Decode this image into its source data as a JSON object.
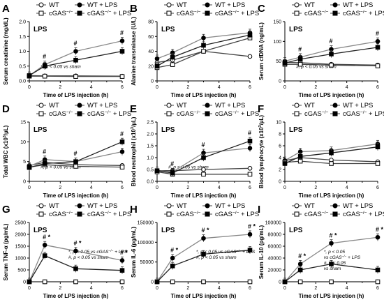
{
  "legend_labels": {
    "wt": "WT",
    "wt_lps": "WT + LPS",
    "cgas": "cGAS-/-",
    "cgas_lps": "cGAS-/- + LPS"
  },
  "colors": {
    "wt": "#666666",
    "wt_lps": "#000000",
    "cgas": "#666666",
    "cgas_lps": "#000000",
    "line_lps": "#888888",
    "line_sham": "#222222"
  },
  "chart_data": [
    {
      "panel": "A",
      "type": "line",
      "condition": "LPS",
      "ylabel": "Serum creatinine (mg/dL)",
      "xlabel": "Time of LPS injection (h)",
      "xlim": [
        0,
        6
      ],
      "xticks": [
        0,
        2,
        4,
        6
      ],
      "ylim": [
        0,
        2.0
      ],
      "yticks": [
        "0.0",
        "0.5",
        "1.0",
        "1.5",
        "2.0"
      ],
      "annotation": "#, p < 0.05 vs sham",
      "x": [
        0,
        1,
        3,
        6
      ],
      "series": [
        {
          "name": "WT",
          "values": [
            0.18,
            0.17,
            0.17,
            0.16
          ]
        },
        {
          "name": "WT + LPS",
          "values": [
            0.18,
            0.55,
            1.0,
            1.35
          ]
        },
        {
          "name": "cGAS-/-",
          "values": [
            0.16,
            0.16,
            0.15,
            0.15
          ]
        },
        {
          "name": "cGAS-/- + LPS",
          "values": [
            0.18,
            0.5,
            0.7,
            1.0
          ]
        }
      ]
    },
    {
      "panel": "B",
      "type": "line",
      "condition": "LPS",
      "ylabel": "Alanine transminase (U/L)",
      "xlabel": "Time of LPS injection (h)",
      "xlim": [
        0,
        6
      ],
      "xticks": [
        0,
        2,
        4,
        6
      ],
      "ylim": [
        0,
        80
      ],
      "yticks": [
        "0",
        "20",
        "40",
        "60",
        "80"
      ],
      "annotation": "",
      "x": [
        0,
        1,
        3,
        6
      ],
      "series": [
        {
          "name": "WT",
          "values": [
            25,
            28,
            40,
            33
          ]
        },
        {
          "name": "WT + LPS",
          "values": [
            30,
            38,
            58,
            65
          ]
        },
        {
          "name": "cGAS-/-",
          "values": [
            18,
            22,
            40,
            58
          ]
        },
        {
          "name": "cGAS-/- + LPS",
          "values": [
            20,
            32,
            48,
            62
          ]
        }
      ]
    },
    {
      "panel": "C",
      "type": "line",
      "condition": "LPS",
      "ylabel": "Serum cfDNA (ng/mL)",
      "xlabel": "Time of LPS injection (h)",
      "xlim": [
        0,
        6
      ],
      "xticks": [
        0,
        2,
        4,
        6
      ],
      "ylim": [
        0,
        150
      ],
      "yticks": [
        "0",
        "50",
        "100",
        "150"
      ],
      "annotation": "#, p < 0.05 vs sham",
      "x": [
        0,
        1,
        3,
        6
      ],
      "series": [
        {
          "name": "WT",
          "values": [
            47,
            46,
            42,
            40
          ]
        },
        {
          "name": "WT + LPS",
          "values": [
            50,
            60,
            80,
            100
          ]
        },
        {
          "name": "cGAS-/-",
          "values": [
            42,
            42,
            40,
            38
          ]
        },
        {
          "name": "cGAS-/- + LPS",
          "values": [
            45,
            55,
            68,
            85
          ]
        }
      ]
    },
    {
      "panel": "D",
      "type": "line",
      "condition": "LPS",
      "ylabel": "Total WBC (x10^3/µL)",
      "xlabel": "Time of LPS injection (h)",
      "xlim": [
        0,
        6
      ],
      "xticks": [
        0,
        2,
        4,
        6
      ],
      "ylim": [
        0,
        15
      ],
      "yticks": [
        "0",
        "5",
        "10",
        "15"
      ],
      "annotation": "#, p < 0.05 vs sham",
      "x": [
        0,
        1,
        3,
        6
      ],
      "series": [
        {
          "name": "WT",
          "values": [
            4.0,
            4.8,
            4.2,
            4.0
          ]
        },
        {
          "name": "WT + LPS",
          "values": [
            3.8,
            5.5,
            5.0,
            7.5
          ]
        },
        {
          "name": "cGAS-/-",
          "values": [
            3.6,
            4.2,
            3.8,
            3.6
          ]
        },
        {
          "name": "cGAS-/- + LPS",
          "values": [
            3.5,
            4.5,
            5.0,
            10.0
          ]
        }
      ]
    },
    {
      "panel": "E",
      "type": "line",
      "condition": "LPS",
      "ylabel": "Blood neutrophil (x10^3/µL)",
      "xlabel": "Time of LPS injection (h)",
      "xlim": [
        0,
        6
      ],
      "xticks": [
        0,
        2,
        4,
        6
      ],
      "ylim": [
        0.0,
        2.5
      ],
      "yticks": [
        "0.0",
        "0.5",
        "1.0",
        "1.5",
        "2.0",
        "2.5"
      ],
      "annotation": "#, p < 0.05 vs sham",
      "x": [
        0,
        1,
        3,
        6
      ],
      "series": [
        {
          "name": "WT",
          "values": [
            0.45,
            0.45,
            0.5,
            0.55
          ]
        },
        {
          "name": "WT + LPS",
          "values": [
            0.45,
            0.4,
            1.2,
            1.4
          ]
        },
        {
          "name": "cGAS-/-",
          "values": [
            0.4,
            0.3,
            0.3,
            0.3
          ]
        },
        {
          "name": "cGAS-/- + LPS",
          "values": [
            0.45,
            0.35,
            1.0,
            1.7
          ]
        }
      ]
    },
    {
      "panel": "F",
      "type": "line",
      "condition": "LPS",
      "ylabel": "Blood lymphocyte (x10^3/µL)",
      "xlabel": "Time of LPS injection (h)",
      "xlim": [
        0,
        6
      ],
      "xticks": [
        0,
        2,
        4,
        6
      ],
      "ylim": [
        0,
        10
      ],
      "yticks": [
        "0",
        "2",
        "4",
        "6",
        "8",
        "10"
      ],
      "annotation": "",
      "x": [
        0,
        1,
        3,
        6
      ],
      "series": [
        {
          "name": "WT",
          "values": [
            3.5,
            4.0,
            3.6,
            3.3
          ]
        },
        {
          "name": "WT + LPS",
          "values": [
            3.5,
            5.0,
            5.2,
            6.3
          ]
        },
        {
          "name": "cGAS-/-",
          "values": [
            3.2,
            3.4,
            3.0,
            3.0
          ]
        },
        {
          "name": "cGAS-/- + LPS",
          "values": [
            3.0,
            4.2,
            4.8,
            5.8
          ]
        }
      ]
    },
    {
      "panel": "G",
      "type": "line",
      "condition": "LPS",
      "ylabel": "Serum TNF-α (pg/mL)",
      "xlabel": "Time of LPS injection (h)",
      "xlim": [
        0,
        6
      ],
      "xticks": [
        0,
        2,
        4,
        6
      ],
      "ylim": [
        0,
        2500
      ],
      "yticks": [
        "0",
        "500",
        "1000",
        "1500",
        "2000",
        "2500"
      ],
      "annotation": "*, p < 0.05 vs cGAS-/- + LPS\n#, p < 0.05 vs sham",
      "x": [
        0,
        1,
        3,
        6
      ],
      "series": [
        {
          "name": "WT",
          "values": [
            0,
            0,
            0,
            0
          ]
        },
        {
          "name": "WT + LPS",
          "values": [
            0,
            1550,
            1300,
            900
          ]
        },
        {
          "name": "cGAS-/-",
          "values": [
            0,
            0,
            0,
            0
          ]
        },
        {
          "name": "cGAS-/- + LPS",
          "values": [
            0,
            1100,
            550,
            480
          ]
        }
      ]
    },
    {
      "panel": "H",
      "type": "line",
      "condition": "LPS",
      "ylabel": "Serum IL-6 (pg/mL)",
      "xlabel": "Time of LPS injection (h)",
      "xlim": [
        0,
        6
      ],
      "xticks": [
        0,
        2,
        4,
        6
      ],
      "ylim": [
        0,
        150000
      ],
      "yticks": [
        "0",
        "50000",
        "100000",
        "150000"
      ],
      "annotation": "*, p < 0.05 vs cGAS-/- + LPS\n#, p < 0.05 vs sham",
      "x": [
        0,
        1,
        3,
        6
      ],
      "series": [
        {
          "name": "WT",
          "values": [
            0,
            0,
            0,
            0
          ]
        },
        {
          "name": "WT + LPS",
          "values": [
            0,
            60000,
            110000,
            120000
          ]
        },
        {
          "name": "cGAS-/-",
          "values": [
            0,
            0,
            0,
            0
          ]
        },
        {
          "name": "cGAS-/- + LPS",
          "values": [
            0,
            40000,
            70000,
            80000
          ]
        }
      ]
    },
    {
      "panel": "I",
      "type": "line",
      "condition": "LPS",
      "ylabel": "Serum IL-10 (pg/mL)",
      "xlabel": "Time of LPS injection (h)",
      "xlim": [
        0,
        6
      ],
      "xticks": [
        0,
        2,
        4,
        6
      ],
      "ylim": [
        0,
        100000
      ],
      "yticks": [
        "0",
        "20000",
        "40000",
        "60000",
        "80000",
        "100000"
      ],
      "annotation": "*, p < 0.05\nvs cGAS-/- + LPS\n#, p < 0.05\nvs sham",
      "x": [
        0,
        1,
        3,
        6
      ],
      "series": [
        {
          "name": "WT",
          "values": [
            0,
            0,
            0,
            0
          ]
        },
        {
          "name": "WT + LPS",
          "values": [
            0,
            30000,
            65000,
            75000
          ]
        },
        {
          "name": "cGAS-/-",
          "values": [
            0,
            0,
            0,
            0
          ]
        },
        {
          "name": "cGAS-/- + LPS",
          "values": [
            0,
            20000,
            30000,
            20000
          ]
        }
      ]
    }
  ]
}
